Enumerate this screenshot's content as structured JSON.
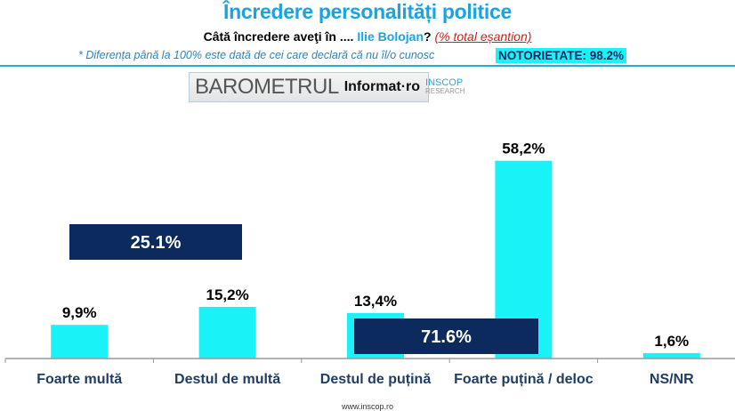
{
  "header": {
    "title": "Încredere personalități politice",
    "question_prefix": "Câtă încredere aveţi în ....",
    "person": "Ilie Bolojan",
    "question_mark": "?",
    "base": "(% total eșantion)",
    "note": "* Diferența până la 100% este dată de cei care declară că nu îl/o cunosc",
    "notoriety": "NOTORIETATE: 98.2%"
  },
  "logo": {
    "barometer": "BAROMETRUL",
    "informat": "Informat·ro",
    "inscop": "INSCOP",
    "research": "RESEARCH"
  },
  "footer": "www.inscop.ro",
  "colors": {
    "bar": "#19f3f7",
    "box": "#0d2a5e",
    "title": "#1aa3e0"
  },
  "chart_data": {
    "type": "bar",
    "categories": [
      "Foarte multă",
      "Destul de multă",
      "Destul de puțină",
      "Foarte puțină / deloc",
      "NS/NR"
    ],
    "values": [
      9.9,
      15.2,
      13.4,
      58.2,
      1.6
    ],
    "value_labels": [
      "9,9%",
      "15,2%",
      "13,4%",
      "58,2%",
      "1,6%"
    ],
    "ylim": [
      0,
      60
    ],
    "annotations": [
      {
        "label": "25.1%",
        "covers": [
          "Foarte multă",
          "Destul de multă"
        ],
        "level": 34
      },
      {
        "label": "71.6%",
        "covers": [
          "Destul de puțină",
          "Foarte puțină / deloc"
        ],
        "level": 7
      }
    ]
  }
}
